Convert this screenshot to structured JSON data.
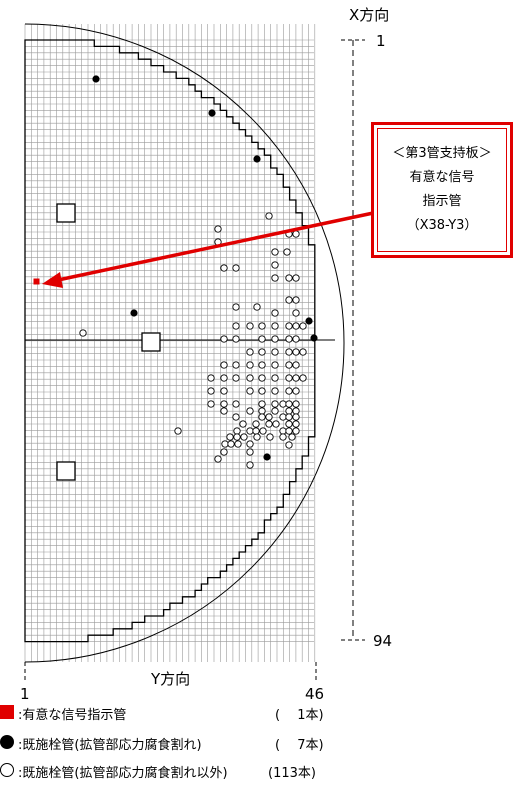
{
  "axis": {
    "x_label": "X方向",
    "y_label": "Y方向",
    "x_top_value": "1",
    "x_bottom_value": "94",
    "y_left_value": "1",
    "y_right_value": "46"
  },
  "callout": {
    "lines": [
      "＜第3管支持板＞",
      "有意な信号",
      "指示管",
      "（X38-Y3）"
    ]
  },
  "legend": [
    {
      "symbol": "red-square",
      "label": ":有意な信号指示管",
      "count": "(　 1本)"
    },
    {
      "symbol": "filled-circle",
      "label": ":既施栓管(拡管部応力腐食割れ)",
      "count": "(　 7本)"
    },
    {
      "symbol": "open-circle",
      "label": ":既施栓管(拡管部応力腐食割れ以外)",
      "count": "(113本)"
    }
  ],
  "colors": {
    "grid": "#9a9a9a",
    "outline": "#000000",
    "signal": "#e00000",
    "arrow": "#e00000"
  },
  "markers": {
    "filled_plugged": 7,
    "open_plugged": 113,
    "signal_tubes": 1
  }
}
